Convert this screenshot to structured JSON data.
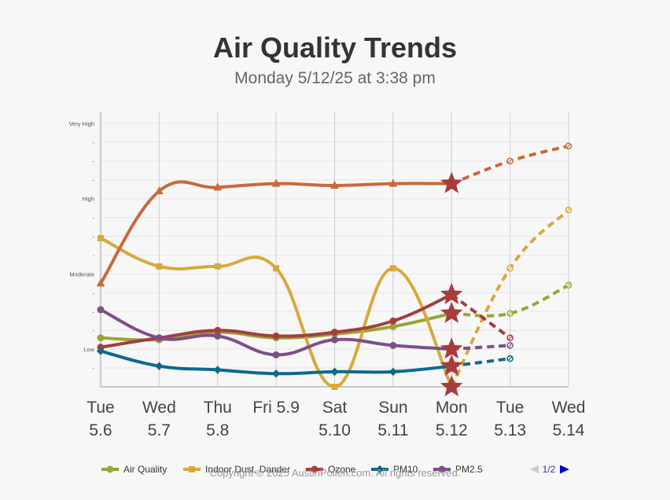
{
  "title": "Air Quality Trends",
  "subtitle": "Monday 5/12/25 at 3:38 pm",
  "copyright": "Copyright © 2025 AustinPollen.com.  All rights reserved.",
  "pagination": {
    "label": "1/2"
  },
  "chart_data": {
    "type": "line",
    "categories": [
      [
        "Tue",
        "5.6"
      ],
      [
        "Wed",
        "5.7"
      ],
      [
        "Thu",
        "5.8"
      ],
      [
        "Fri 5.9",
        ""
      ],
      [
        "Sat",
        "5.10"
      ],
      [
        "Sun",
        "5.11"
      ],
      [
        "Mon",
        "5.12"
      ],
      [
        "Tue",
        "5.13"
      ],
      [
        "Wed",
        "5.14"
      ]
    ],
    "ylim": [
      0,
      14
    ],
    "yticks": [
      {
        "value": 0,
        "label": ""
      },
      {
        "value": 1,
        "label": "-"
      },
      {
        "value": 2,
        "label": "Low"
      },
      {
        "value": 3,
        "label": "-"
      },
      {
        "value": 4,
        "label": "-"
      },
      {
        "value": 5,
        "label": "-"
      },
      {
        "value": 6,
        "label": "Moderate"
      },
      {
        "value": 7,
        "label": "-"
      },
      {
        "value": 8,
        "label": "-"
      },
      {
        "value": 9,
        "label": "-"
      },
      {
        "value": 10,
        "label": "High"
      },
      {
        "value": 11,
        "label": "-"
      },
      {
        "value": 12,
        "label": "-"
      },
      {
        "value": 13,
        "label": "-"
      },
      {
        "value": 14,
        "label": "Very High"
      }
    ],
    "today_index": 6,
    "legend_position": "bottom",
    "series": [
      {
        "name": "Air Quality",
        "color": "#9aa533",
        "marker": "circle",
        "values": [
          2.6,
          2.5,
          2.9,
          2.6,
          2.8,
          3.2,
          3.9,
          3.9,
          5.4
        ]
      },
      {
        "name": "Indoor Dust, Dander",
        "color": "#d8a83a",
        "marker": "square",
        "values": [
          7.9,
          6.4,
          6.4,
          6.3,
          0.0,
          6.3,
          0.0,
          6.3,
          9.4
        ]
      },
      {
        "name": "Ozone",
        "color": "#a33e3e",
        "marker": "circle",
        "values": [
          2.1,
          2.6,
          3.0,
          2.7,
          2.9,
          3.5,
          4.9,
          2.6,
          null
        ]
      },
      {
        "name": "PM10",
        "color": "#0e6a8c",
        "marker": "diamond",
        "values": [
          1.9,
          1.1,
          0.9,
          0.7,
          0.8,
          0.8,
          1.1,
          1.5,
          null
        ]
      },
      {
        "name": "PM2.5",
        "color": "#7c4f8c",
        "marker": "circle",
        "values": [
          4.1,
          2.6,
          2.7,
          1.7,
          2.5,
          2.2,
          2.0,
          2.2,
          null
        ]
      },
      {
        "name": "",
        "color": "#c76b3a",
        "marker": "triangle",
        "values": [
          5.5,
          10.4,
          10.6,
          10.8,
          10.7,
          10.8,
          10.8,
          12.0,
          12.8
        ]
      }
    ]
  }
}
